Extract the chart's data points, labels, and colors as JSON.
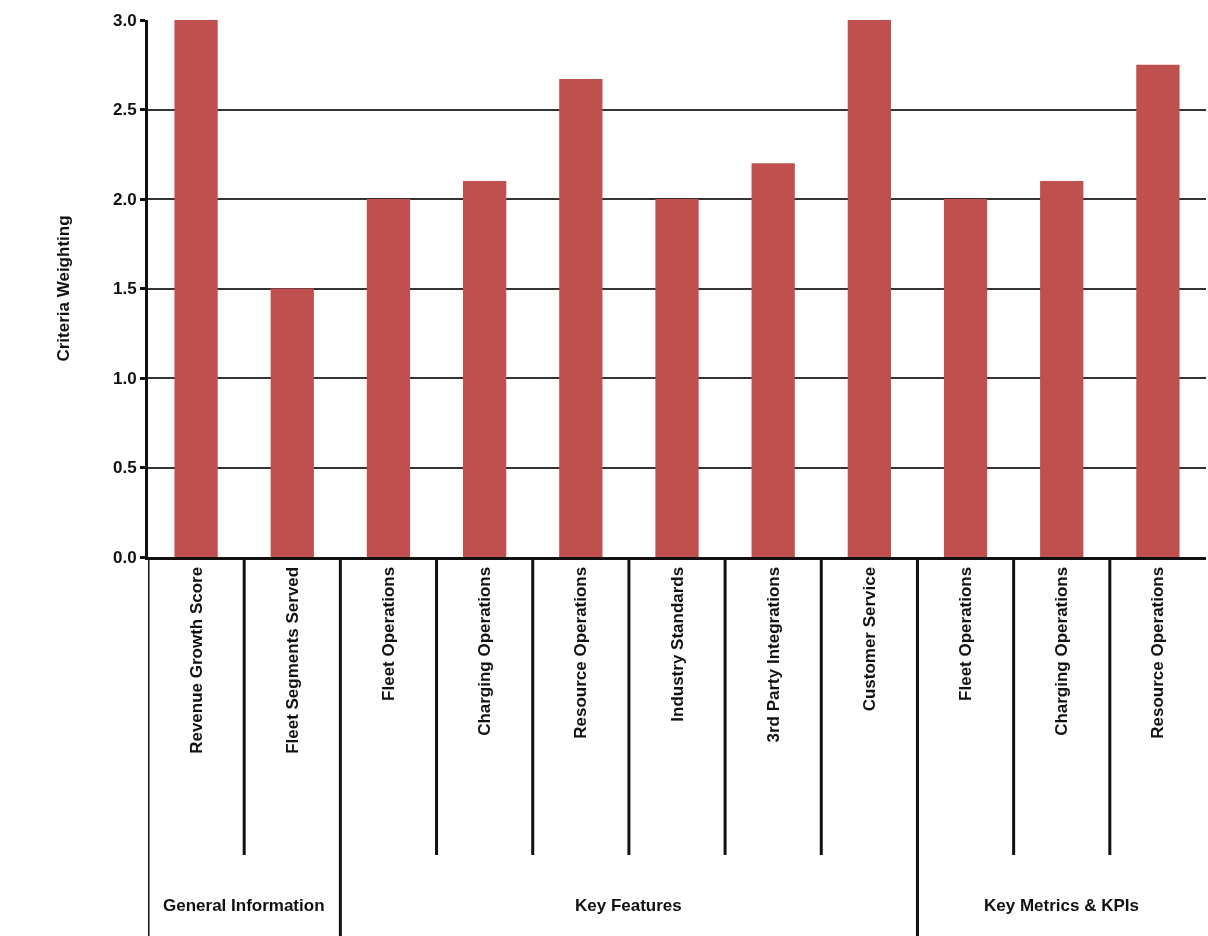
{
  "chart_data": {
    "type": "bar",
    "categories": [
      "Revenue Growth Score",
      "Fleet Segments Served",
      "Fleet Operations",
      "Charging Operations",
      "Resource Operations",
      "Industry Standards",
      "3rd Party Integrations",
      "Customer Service",
      "Fleet Operations",
      "Charging Operations",
      "Resource Operations"
    ],
    "values": [
      3.0,
      1.5,
      2.0,
      2.1,
      2.67,
      2.0,
      2.2,
      3.0,
      2.0,
      2.1,
      2.75
    ],
    "color": "#c0504d",
    "ylabel": "Criteria Weighting",
    "ylim": [
      0,
      3.0
    ],
    "yticks": [
      {
        "value": 0,
        "label": "0.0"
      },
      {
        "value": 0.5,
        "label": "0.5"
      },
      {
        "value": 1,
        "label": "1.0"
      },
      {
        "value": 1.5,
        "label": "1.5"
      },
      {
        "value": 2,
        "label": "2.0"
      },
      {
        "value": 2.5,
        "label": "2.5"
      },
      {
        "value": 3,
        "label": "3.0"
      }
    ],
    "grid": "y",
    "annotations": [
      "General Information",
      "Key Features",
      "Key Metrics & KPIs"
    ]
  }
}
